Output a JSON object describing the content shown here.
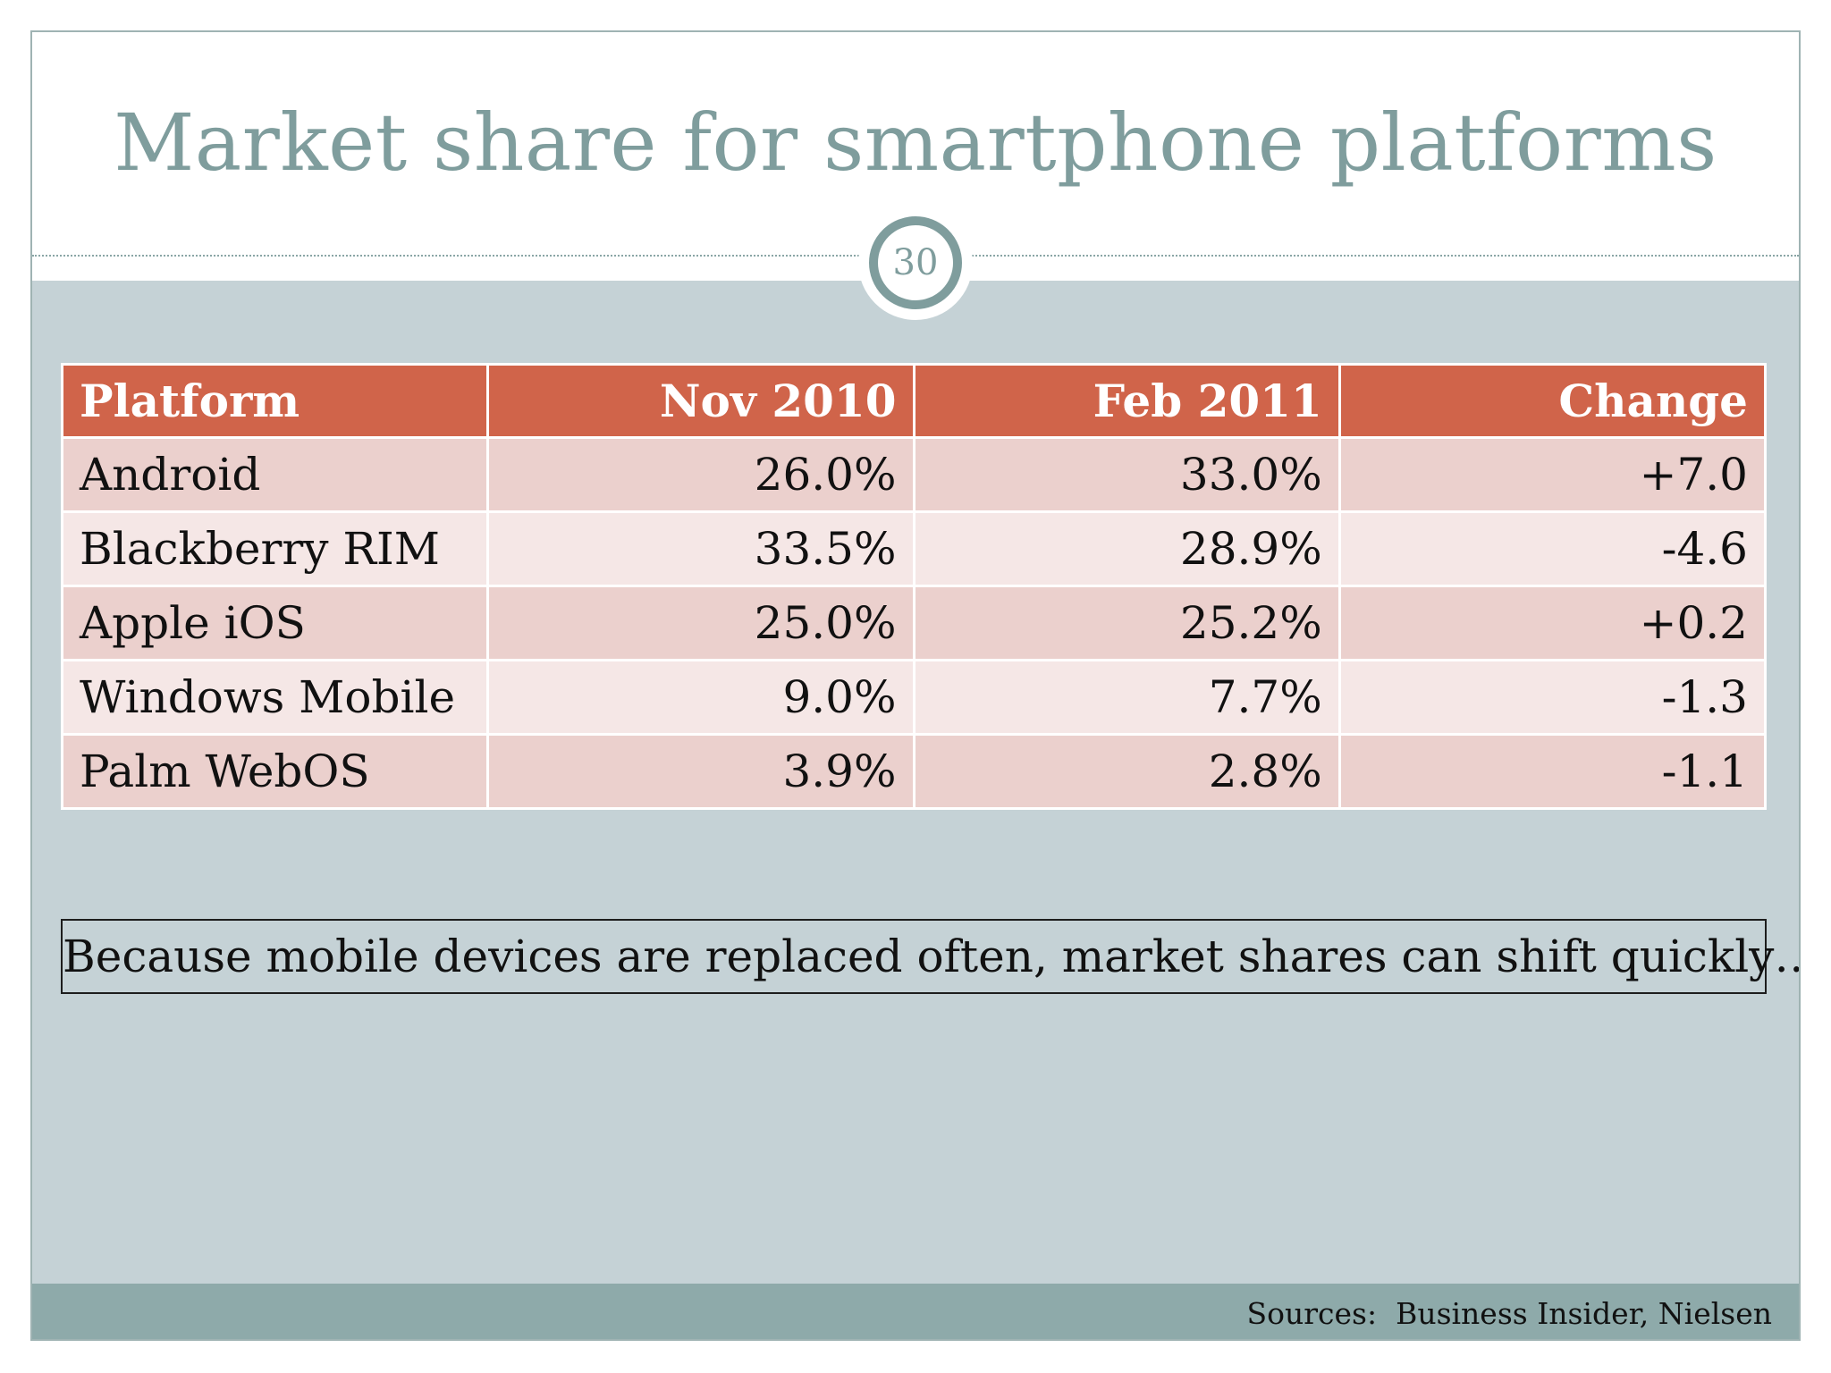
{
  "slide": {
    "title": "Market share for smartphone platforms",
    "page_number": "30"
  },
  "table": {
    "headers": [
      "Platform",
      "Nov 2010",
      "Feb 2011",
      "Change"
    ],
    "rows": [
      [
        "Android",
        "26.0%",
        "33.0%",
        "+7.0"
      ],
      [
        "Blackberry RIM",
        "33.5%",
        "28.9%",
        "-4.6"
      ],
      [
        "Apple iOS",
        "25.0%",
        "25.2%",
        "+0.2"
      ],
      [
        "Windows Mobile",
        "9.0%",
        "7.7%",
        "-1.3"
      ],
      [
        "Palm WebOS",
        "3.9%",
        "2.8%",
        "-1.1"
      ]
    ]
  },
  "note": "Because mobile devices are replaced often, market shares can shift quickly…",
  "footer": {
    "sources": "Sources:  Business Insider, Nielsen"
  },
  "colors": {
    "title": "#7f9d9d",
    "header_bg": "#d0644a",
    "row_odd": "#ebd0cd",
    "row_even": "#f5e7e6",
    "content_bg": "#c5d2d6",
    "footer_bg": "#8eaaaa"
  }
}
